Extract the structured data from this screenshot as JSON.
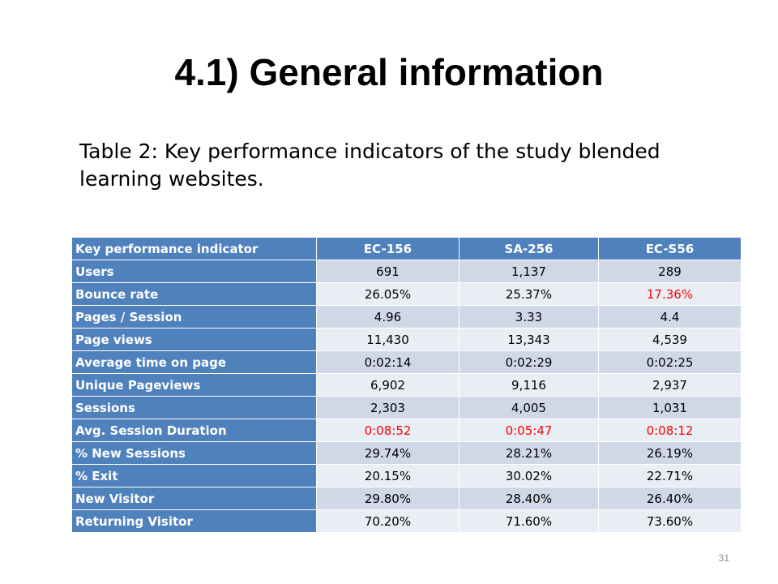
{
  "slide": {
    "title": "4.1) General information",
    "caption": "Table 2: Key performance indicators of the study blended learning websites.",
    "page_number": "31"
  },
  "table": {
    "columns": [
      "Key performance indicator",
      "EC-156",
      "SA-256",
      "EC-S56"
    ],
    "highlight_color": "#ff0000",
    "header_color": "#4f81bd",
    "rows": [
      {
        "label": "Users",
        "values": [
          "691",
          "1,137",
          "289"
        ],
        "highlight": [
          false,
          false,
          false
        ]
      },
      {
        "label": "Bounce rate",
        "values": [
          "26.05%",
          "25.37%",
          "17.36%"
        ],
        "highlight": [
          false,
          false,
          true
        ]
      },
      {
        "label": "Pages / Session",
        "values": [
          "4.96",
          "3.33",
          "4.4"
        ],
        "highlight": [
          false,
          false,
          false
        ]
      },
      {
        "label": "Page views",
        "values": [
          "11,430",
          "13,343",
          "4,539"
        ],
        "highlight": [
          false,
          false,
          false
        ]
      },
      {
        "label": "Average time on page",
        "values": [
          "0:02:14",
          "0:02:29",
          "0:02:25"
        ],
        "highlight": [
          false,
          false,
          false
        ]
      },
      {
        "label": "Unique Pageviews",
        "values": [
          "6,902",
          "9,116",
          "2,937"
        ],
        "highlight": [
          false,
          false,
          false
        ]
      },
      {
        "label": "Sessions",
        "values": [
          "2,303",
          "4,005",
          "1,031"
        ],
        "highlight": [
          false,
          false,
          false
        ]
      },
      {
        "label": "Avg. Session Duration",
        "values": [
          "0:08:52",
          "0:05:47",
          "0:08:12"
        ],
        "highlight": [
          true,
          true,
          true
        ]
      },
      {
        "label": "% New Sessions",
        "values": [
          "29.74%",
          "28.21%",
          "26.19%"
        ],
        "highlight": [
          false,
          false,
          false
        ]
      },
      {
        "label": "% Exit",
        "values": [
          "20.15%",
          "30.02%",
          "22.71%"
        ],
        "highlight": [
          false,
          false,
          false
        ]
      },
      {
        "label": "New Visitor",
        "values": [
          "29.80%",
          "28.40%",
          "26.40%"
        ],
        "highlight": [
          false,
          false,
          false
        ]
      },
      {
        "label": "Returning Visitor",
        "values": [
          "70.20%",
          "71.60%",
          "73.60%"
        ],
        "highlight": [
          false,
          false,
          false
        ]
      }
    ]
  }
}
